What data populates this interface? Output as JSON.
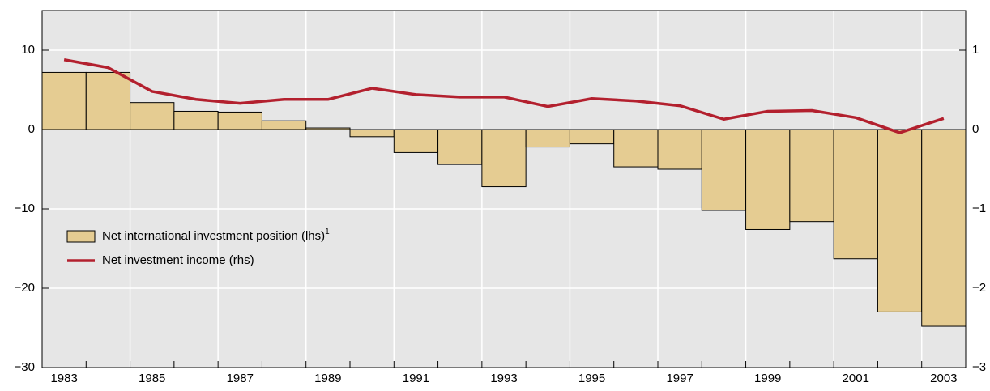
{
  "chart_data": {
    "type": "combo",
    "categories": [
      "1983",
      null,
      "1985",
      null,
      "1987",
      null,
      "1989",
      null,
      "1991",
      null,
      "1993",
      null,
      "1995",
      null,
      "1997",
      null,
      "1999",
      null,
      "2001",
      null,
      "2003"
    ],
    "series": [
      {
        "name": "Net international investment position (lhs)",
        "note": "1",
        "type": "bar",
        "axis": "y",
        "color": "#e5cc92",
        "values": [
          7.2,
          7.2,
          3.4,
          2.3,
          2.2,
          1.1,
          0.2,
          -0.9,
          -2.9,
          -4.4,
          -7.2,
          -2.2,
          -1.8,
          -4.7,
          -5.0,
          -10.2,
          -12.6,
          -11.6,
          -16.3,
          -23.0,
          -24.8
        ]
      },
      {
        "name": "Net investment income (rhs)",
        "type": "line",
        "axis": "y2",
        "color": "#b3202e",
        "values": [
          0.88,
          0.78,
          0.48,
          0.38,
          0.33,
          0.38,
          0.38,
          0.52,
          0.44,
          0.41,
          0.41,
          0.29,
          0.39,
          0.36,
          0.3,
          0.13,
          0.23,
          0.24,
          0.15,
          -0.04,
          0.14
        ]
      }
    ],
    "ylim": [
      -30,
      15
    ],
    "yticks": [
      {
        "value": -30,
        "label": "−30"
      },
      {
        "value": -20,
        "label": "−20"
      },
      {
        "value": -10,
        "label": "−10"
      },
      0,
      10
    ],
    "y2lim": [
      -3,
      1.5
    ],
    "y2ticks": [
      {
        "value": -3,
        "label": "−3"
      },
      {
        "value": -2,
        "label": "−2"
      },
      {
        "value": -1,
        "label": "−1"
      },
      0,
      1
    ],
    "grid": true
  }
}
